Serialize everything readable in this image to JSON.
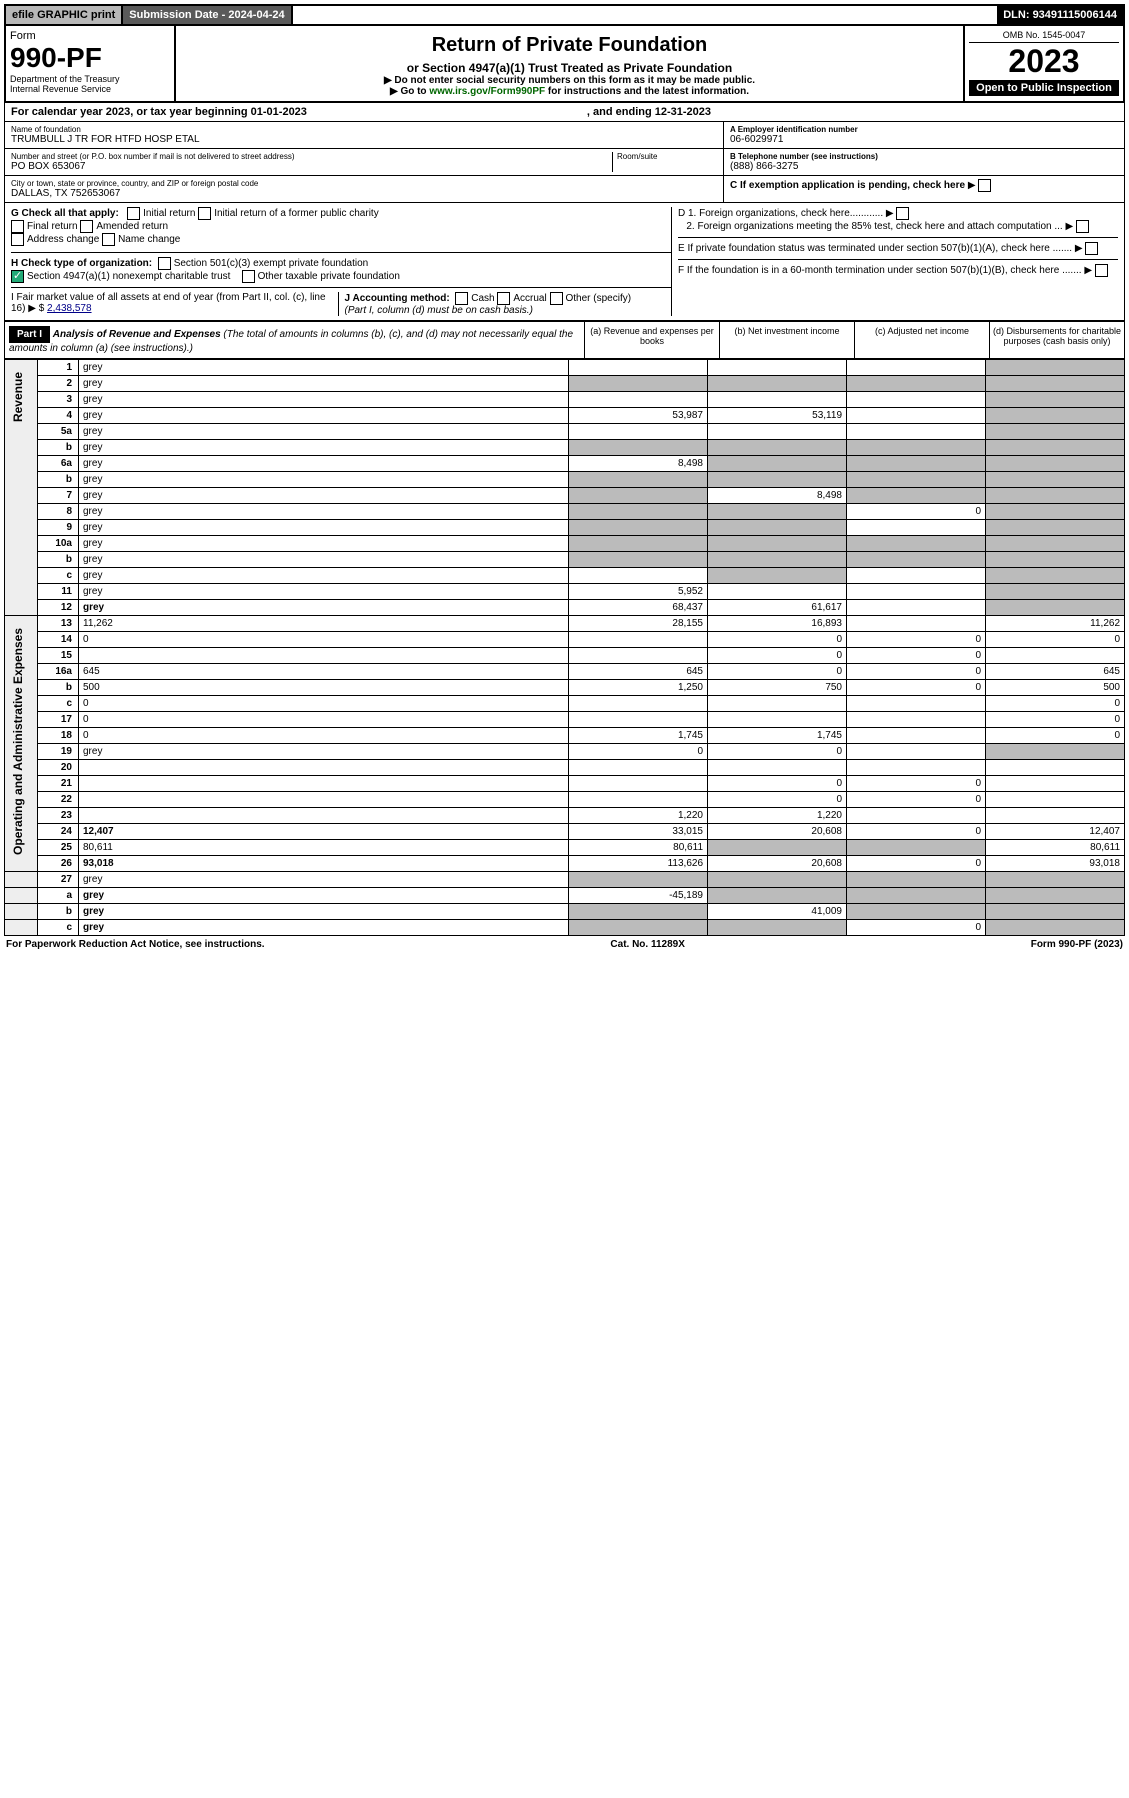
{
  "topbar": {
    "efile": "efile GRAPHIC print",
    "subdate_label": "Submission Date - ",
    "subdate": "2024-04-24",
    "dln_label": "DLN: ",
    "dln": "93491115006144"
  },
  "formhead": {
    "form_label": "Form",
    "form_no": "990-PF",
    "dept": "Department of the Treasury\nInternal Revenue Service",
    "title": "Return of Private Foundation",
    "subtitle": "or Section 4947(a)(1) Trust Treated as Private Foundation",
    "note1": "▶ Do not enter social security numbers on this form as it may be made public.",
    "note2_pre": "▶ Go to ",
    "note2_link": "www.irs.gov/Form990PF",
    "note2_post": " for instructions and the latest information.",
    "omb": "OMB No. 1545-0047",
    "year": "2023",
    "open": "Open to Public Inspection"
  },
  "calrow": {
    "text": "For calendar year 2023, or tax year beginning 01-01-2023",
    "end": ", and ending 12-31-2023"
  },
  "info": {
    "name_lbl": "Name of foundation",
    "name": "TRUMBULL J TR FOR HTFD HOSP ETAL",
    "addr_lbl": "Number and street (or P.O. box number if mail is not delivered to street address)",
    "addr": "PO BOX 653067",
    "room_lbl": "Room/suite",
    "city_lbl": "City or town, state or province, country, and ZIP or foreign postal code",
    "city": "DALLAS, TX  752653067",
    "ein_lbl": "A Employer identification number",
    "ein": "06-6029971",
    "phone_lbl": "B Telephone number (see instructions)",
    "phone": "(888) 866-3275",
    "c_lbl": "C If exemption application is pending, check here"
  },
  "checks": {
    "g_lbl": "G Check all that apply:",
    "g_items": [
      "Initial return",
      "Initial return of a former public charity",
      "Final return",
      "Amended return",
      "Address change",
      "Name change"
    ],
    "h_lbl": "H Check type of organization:",
    "h1": "Section 501(c)(3) exempt private foundation",
    "h2": "Section 4947(a)(1) nonexempt charitable trust",
    "h3": "Other taxable private foundation",
    "i_lbl": "I Fair market value of all assets at end of year (from Part II, col. (c), line 16) ▶ $",
    "i_val": "2,438,578",
    "j_lbl": "J Accounting method:",
    "j_items": [
      "Cash",
      "Accrual",
      "Other (specify)"
    ],
    "j_note": "(Part I, column (d) must be on cash basis.)",
    "d_lbl": "D 1. Foreign organizations, check here............",
    "d2": "2. Foreign organizations meeting the 85% test, check here and attach computation ...",
    "e_lbl": "E If private foundation status was terminated under section 507(b)(1)(A), check here .......",
    "f_lbl": "F If the foundation is in a 60-month termination under section 507(b)(1)(B), check here ......."
  },
  "part1": {
    "hdr": "Part I",
    "title": "Analysis of Revenue and Expenses",
    "title_note": "(The total of amounts in columns (b), (c), and (d) may not necessarily equal the amounts in column (a) (see instructions).)",
    "cols": {
      "a": "(a) Revenue and expenses per books",
      "b": "(b) Net investment income",
      "c": "(c) Adjusted net income",
      "d": "(d) Disbursements for charitable purposes (cash basis only)"
    }
  },
  "sections": {
    "rev": "Revenue",
    "exp": "Operating and Administrative Expenses"
  },
  "lines": [
    {
      "n": "1",
      "d": "grey",
      "a": "",
      "b": "",
      "c": "",
      "sec": "rev"
    },
    {
      "n": "2",
      "d": "grey",
      "a": "grey",
      "b": "grey",
      "c": "grey",
      "sec": "rev",
      "bold": false
    },
    {
      "n": "3",
      "d": "grey",
      "a": "",
      "b": "",
      "c": "",
      "sec": "rev"
    },
    {
      "n": "4",
      "d": "grey",
      "a": "53,987",
      "b": "53,119",
      "c": "",
      "sec": "rev"
    },
    {
      "n": "5a",
      "d": "grey",
      "a": "",
      "b": "",
      "c": "",
      "sec": "rev"
    },
    {
      "n": "b",
      "d": "grey",
      "a": "grey",
      "b": "grey",
      "c": "grey",
      "sec": "rev"
    },
    {
      "n": "6a",
      "d": "grey",
      "a": "8,498",
      "b": "grey",
      "c": "grey",
      "sec": "rev"
    },
    {
      "n": "b",
      "d": "grey",
      "a": "grey",
      "b": "grey",
      "c": "grey",
      "sec": "rev"
    },
    {
      "n": "7",
      "d": "grey",
      "a": "grey",
      "b": "8,498",
      "c": "grey",
      "sec": "rev"
    },
    {
      "n": "8",
      "d": "grey",
      "a": "grey",
      "b": "grey",
      "c": "0",
      "sec": "rev"
    },
    {
      "n": "9",
      "d": "grey",
      "a": "grey",
      "b": "grey",
      "c": "",
      "sec": "rev"
    },
    {
      "n": "10a",
      "d": "grey",
      "a": "grey",
      "b": "grey",
      "c": "grey",
      "sec": "rev"
    },
    {
      "n": "b",
      "d": "grey",
      "a": "grey",
      "b": "grey",
      "c": "grey",
      "sec": "rev"
    },
    {
      "n": "c",
      "d": "grey",
      "a": "",
      "b": "grey",
      "c": "",
      "sec": "rev"
    },
    {
      "n": "11",
      "d": "grey",
      "a": "5,952",
      "b": "",
      "c": "",
      "sec": "rev"
    },
    {
      "n": "12",
      "d": "grey",
      "a": "68,437",
      "b": "61,617",
      "c": "",
      "sec": "rev",
      "bold": true
    },
    {
      "n": "13",
      "d": "11,262",
      "a": "28,155",
      "b": "16,893",
      "c": "",
      "sec": "exp"
    },
    {
      "n": "14",
      "d": "0",
      "a": "",
      "b": "0",
      "c": "0",
      "sec": "exp"
    },
    {
      "n": "15",
      "d": "",
      "a": "",
      "b": "0",
      "c": "0",
      "sec": "exp"
    },
    {
      "n": "16a",
      "d": "645",
      "a": "645",
      "b": "0",
      "c": "0",
      "sec": "exp"
    },
    {
      "n": "b",
      "d": "500",
      "a": "1,250",
      "b": "750",
      "c": "0",
      "sec": "exp"
    },
    {
      "n": "c",
      "d": "0",
      "a": "",
      "b": "",
      "c": "",
      "sec": "exp"
    },
    {
      "n": "17",
      "d": "0",
      "a": "",
      "b": "",
      "c": "",
      "sec": "exp"
    },
    {
      "n": "18",
      "d": "0",
      "a": "1,745",
      "b": "1,745",
      "c": "",
      "sec": "exp"
    },
    {
      "n": "19",
      "d": "grey",
      "a": "0",
      "b": "0",
      "c": "",
      "sec": "exp"
    },
    {
      "n": "20",
      "d": "",
      "a": "",
      "b": "",
      "c": "",
      "sec": "exp"
    },
    {
      "n": "21",
      "d": "",
      "a": "",
      "b": "0",
      "c": "0",
      "sec": "exp"
    },
    {
      "n": "22",
      "d": "",
      "a": "",
      "b": "0",
      "c": "0",
      "sec": "exp"
    },
    {
      "n": "23",
      "d": "",
      "a": "1,220",
      "b": "1,220",
      "c": "",
      "sec": "exp"
    },
    {
      "n": "24",
      "d": "12,407",
      "a": "33,015",
      "b": "20,608",
      "c": "0",
      "sec": "exp",
      "bold": true
    },
    {
      "n": "25",
      "d": "80,611",
      "a": "80,611",
      "b": "grey",
      "c": "grey",
      "sec": "exp"
    },
    {
      "n": "26",
      "d": "93,018",
      "a": "113,626",
      "b": "20,608",
      "c": "0",
      "sec": "exp",
      "bold": true
    },
    {
      "n": "27",
      "d": "grey",
      "a": "grey",
      "b": "grey",
      "c": "grey",
      "sec": "none"
    },
    {
      "n": "a",
      "d": "grey",
      "a": "-45,189",
      "b": "grey",
      "c": "grey",
      "sec": "none",
      "bold": true
    },
    {
      "n": "b",
      "d": "grey",
      "a": "grey",
      "b": "41,009",
      "c": "grey",
      "sec": "none",
      "bold": true
    },
    {
      "n": "c",
      "d": "grey",
      "a": "grey",
      "b": "grey",
      "c": "0",
      "sec": "none",
      "bold": true
    }
  ],
  "footer": {
    "left": "For Paperwork Reduction Act Notice, see instructions.",
    "mid": "Cat. No. 11289X",
    "right": "Form 990-PF (2023)"
  }
}
